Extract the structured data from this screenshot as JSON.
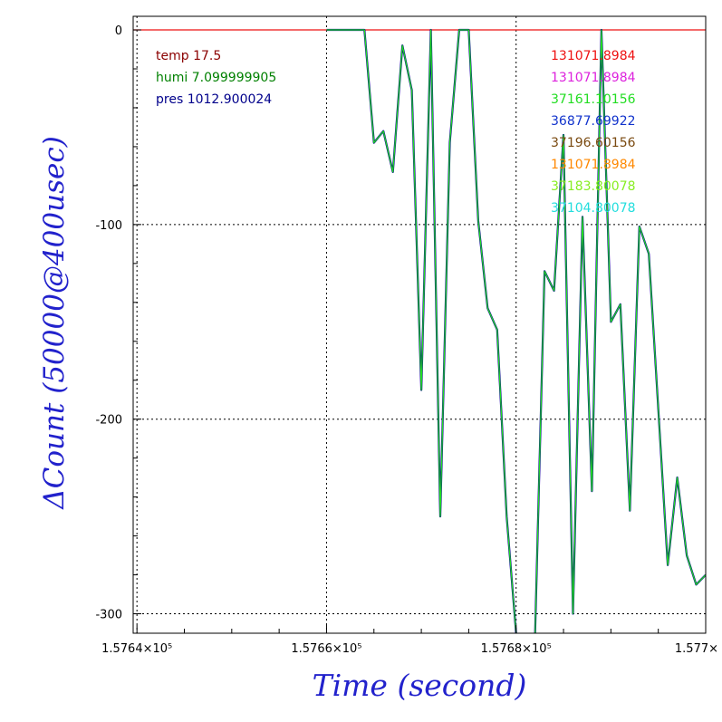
{
  "chart_data": {
    "type": "line",
    "title": "",
    "xlabel": "Time (second)",
    "ylabel": "ΔCount (50000@400usec)",
    "xlim": [
      157639.6,
      157700
    ],
    "ylim": [
      -310,
      7
    ],
    "grid": true,
    "x_ticks": [
      {
        "value": 157640,
        "label": "1.5764×10⁵"
      },
      {
        "value": 157660,
        "label": "1.5766×10⁵"
      },
      {
        "value": 157680,
        "label": "1.5768×10⁵"
      },
      {
        "value": 157700,
        "label": "1.577×"
      }
    ],
    "x_minor_ticks": [
      157645,
      157650,
      157655,
      157665,
      157670,
      157675,
      157685,
      157690,
      157695
    ],
    "y_ticks": [
      {
        "value": 0,
        "label": "0"
      },
      {
        "value": -100,
        "label": "-100"
      },
      {
        "value": -200,
        "label": "-200"
      },
      {
        "value": -300,
        "label": "-300"
      }
    ],
    "legend_left": [
      {
        "text": "temp 17.5",
        "color": "#8b0000"
      },
      {
        "text": "humi 7.099999905",
        "color": "#008000"
      },
      {
        "text": "pres 1012.900024",
        "color": "#00008b"
      }
    ],
    "legend_right": [
      {
        "text": "131071.8984",
        "color": "#ee1111"
      },
      {
        "text": "131071.8984",
        "color": "#dd22dd"
      },
      {
        "text": "37161.10156",
        "color": "#22dd22"
      },
      {
        "text": "36877.69922",
        "color": "#1133cc"
      },
      {
        "text": "37196.60156",
        "color": "#7a4a10"
      },
      {
        "text": "131071.8984",
        "color": "#ff8800"
      },
      {
        "text": "37183.80078",
        "color": "#88ee22"
      },
      {
        "text": "37104.80078",
        "color": "#22dddd"
      }
    ],
    "series": [
      {
        "color": "#ee1111",
        "x": [
          157639.6,
          157700
        ],
        "y": [
          0,
          0
        ]
      },
      {
        "color": "#00008b",
        "x": [
          157660,
          157664,
          157665,
          157666,
          157667,
          157668,
          157669,
          157670,
          157671,
          157672,
          157673,
          157674,
          157675,
          157676,
          157677,
          157678,
          157679,
          157680,
          157681,
          157682,
          157683,
          157684,
          157685,
          157686,
          157687,
          157688,
          157689,
          157690,
          157691,
          157692,
          157693,
          157694,
          157695,
          157696,
          157697,
          157698,
          157699,
          157700
        ],
        "y": [
          0,
          0,
          -58,
          -52,
          -73,
          -8,
          -31,
          -185,
          0,
          -250,
          -58,
          0,
          0,
          -98,
          -143,
          -154,
          -250,
          -310,
          -350,
          -310,
          -124,
          -134,
          -54,
          -300,
          -96,
          -237,
          0,
          -150,
          -141,
          -247,
          -101,
          -115,
          -195,
          -275,
          -230,
          -270,
          -285,
          -280
        ]
      },
      {
        "color": "#22dd22",
        "x": [
          157660,
          157664,
          157665,
          157666,
          157667,
          157668,
          157669,
          157670,
          157671,
          157672,
          157673,
          157674,
          157675,
          157676,
          157677,
          157678,
          157679,
          157680,
          157681,
          157682,
          157683,
          157684,
          157685,
          157686,
          157687,
          157688,
          157689,
          157690,
          157691,
          157692,
          157693,
          157694,
          157695,
          157696,
          157697,
          157698,
          157699,
          157700
        ],
        "y": [
          0,
          0,
          -58,
          -52,
          -73,
          -8,
          -31,
          -185,
          0,
          -250,
          -58,
          0,
          0,
          -98,
          -143,
          -154,
          -250,
          -310,
          -350,
          -310,
          -124,
          -134,
          -54,
          -300,
          -96,
          -237,
          0,
          -150,
          -141,
          -247,
          -101,
          -115,
          -195,
          -275,
          -230,
          -270,
          -285,
          -280
        ]
      }
    ]
  }
}
